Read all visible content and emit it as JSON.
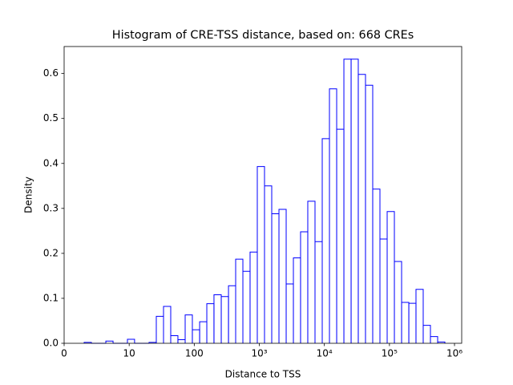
{
  "chart_data": {
    "type": "histogram",
    "title": "Histogram of CRE-TSS distance, based on: 668 CREs",
    "xlabel": "Distance to TSS",
    "ylabel": "Density",
    "xscale": "symlog",
    "linthresh": 10,
    "bins": [
      3.08,
      4.19,
      5.3,
      6.41,
      7.52,
      8.62,
      9.73,
      12.1,
      15.7,
      20.2,
      26.1,
      33.7,
      43.5,
      56.1,
      72.5,
      93.5,
      121,
      156,
      201,
      260,
      336,
      433,
      559,
      721,
      931,
      1202,
      1552,
      2004,
      2587,
      3340,
      4306,
      5559,
      7178,
      9268,
      11967,
      15452,
      19950,
      25760,
      33190,
      42855,
      55335,
      71450,
      92250,
      119100,
      153800,
      198600,
      255900,
      330400,
      426600,
      550800,
      711200
    ],
    "values": [
      0.002,
      0,
      0,
      0.005,
      0,
      0,
      0.009,
      0,
      0,
      0.002,
      0.06,
      0.082,
      0.017,
      0.008,
      0.063,
      0.03,
      0.048,
      0.088,
      0.108,
      0.104,
      0.128,
      0.187,
      0.16,
      0.203,
      0.393,
      0.35,
      0.288,
      0.298,
      0.132,
      0.19,
      0.248,
      0.316,
      0.226,
      0.455,
      0.566,
      0.476,
      0.632,
      0.632,
      0.598,
      0.574,
      0.343,
      0.232,
      0.293,
      0.182,
      0.091,
      0.089,
      0.12,
      0.04,
      0.015,
      0.003
    ],
    "color": "#0000ff",
    "xlim": [
      0,
      1290000
    ],
    "xticks": [
      0,
      10,
      100,
      {
        "value": 1000,
        "label": "10³"
      },
      {
        "value": 10000,
        "label": "10⁴"
      },
      {
        "value": 100000,
        "label": "10⁵"
      },
      {
        "value": 1000000,
        "label": "10⁶"
      }
    ],
    "ylim": [
      0,
      0.66
    ],
    "yticks": [
      {
        "value": 0,
        "label": "0.0"
      },
      0.1,
      0.2,
      0.3,
      0.4,
      0.5,
      0.6
    ]
  }
}
